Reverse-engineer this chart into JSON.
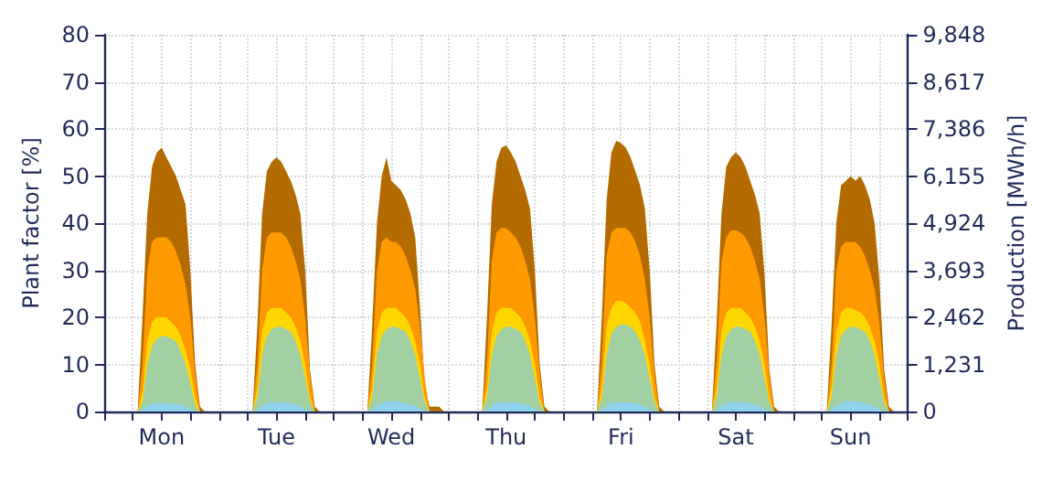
{
  "chart_data": {
    "type": "area",
    "ylabel": "Plant factor [%]",
    "y2label": "Production [MWh/h]",
    "categories": [
      null,
      null,
      null,
      null,
      null,
      null,
      null,
      null,
      null,
      null,
      null,
      null,
      "Mon",
      null,
      null,
      null,
      null,
      null,
      null,
      null,
      null,
      null,
      null,
      null,
      null,
      null,
      null,
      null,
      null,
      null,
      null,
      null,
      null,
      null,
      null,
      null,
      "Tue",
      null,
      null,
      null,
      null,
      null,
      null,
      null,
      null,
      null,
      null,
      null,
      null,
      null,
      null,
      null,
      null,
      null,
      null,
      null,
      null,
      null,
      null,
      null,
      "Wed",
      null,
      null,
      null,
      null,
      null,
      null,
      null,
      null,
      null,
      null,
      null,
      null,
      null,
      null,
      null,
      null,
      null,
      null,
      null,
      null,
      null,
      null,
      null,
      "Thu",
      null,
      null,
      null,
      null,
      null,
      null,
      null,
      null,
      null,
      null,
      null,
      null,
      null,
      null,
      null,
      null,
      null,
      null,
      null,
      null,
      null,
      null,
      null,
      "Fri",
      null,
      null,
      null,
      null,
      null,
      null,
      null,
      null,
      null,
      null,
      null,
      null,
      null,
      null,
      null,
      null,
      null,
      null,
      null,
      null,
      null,
      null,
      null,
      "Sat",
      null,
      null,
      null,
      null,
      null,
      null,
      null,
      null,
      null,
      null,
      null,
      null,
      null,
      null,
      null,
      null,
      null,
      null,
      null,
      null,
      null,
      null,
      null,
      "Sun",
      null,
      null,
      null,
      null,
      null,
      null,
      null,
      null,
      null,
      null,
      null,
      null
    ],
    "series": [
      {
        "color": "#b36b00",
        "values": [
          0,
          0,
          0,
          0,
          0,
          0,
          0,
          0,
          20,
          42,
          52,
          55,
          56,
          54,
          52,
          50,
          47,
          44,
          30,
          10,
          1,
          0,
          0,
          0,
          0,
          0,
          0,
          0,
          0,
          0,
          0,
          0,
          18,
          42,
          51,
          53,
          54,
          53,
          51,
          49,
          46,
          42,
          30,
          9,
          1,
          0,
          0,
          0,
          0,
          0,
          0,
          0,
          0,
          0,
          0,
          0,
          18,
          40,
          50,
          54,
          49,
          48,
          47,
          45,
          42,
          37,
          22,
          5,
          1,
          1,
          1,
          0,
          0,
          0,
          0,
          0,
          0,
          0,
          0,
          0,
          20,
          44,
          53,
          56,
          56.5,
          55,
          53,
          50,
          47,
          43,
          30,
          10,
          1,
          0,
          0,
          0,
          0,
          0,
          0,
          0,
          0,
          0,
          0,
          0,
          20,
          45,
          55,
          57.5,
          57,
          56,
          54,
          51,
          48,
          43,
          30,
          10,
          1,
          0,
          0,
          0,
          0,
          0,
          0,
          0,
          0,
          0,
          0,
          0,
          19,
          42,
          52,
          54,
          55,
          54,
          52,
          49,
          46,
          42,
          29,
          9,
          1,
          0,
          0,
          0,
          0,
          0,
          0,
          0,
          0,
          0,
          0,
          0,
          18,
          40,
          48,
          49,
          50,
          49,
          50,
          48,
          45,
          40,
          28,
          9,
          1,
          0,
          0,
          0,
          0
        ]
      },
      {
        "color": "#ff9900",
        "values": [
          0,
          0,
          0,
          0,
          0,
          0,
          0,
          0,
          10,
          30,
          36,
          37,
          37,
          37,
          36,
          34,
          31,
          27,
          20,
          8,
          0,
          0,
          0,
          0,
          0,
          0,
          0,
          0,
          0,
          0,
          0,
          0,
          10,
          30,
          37,
          38,
          38,
          38,
          37,
          35,
          32,
          28,
          20,
          8,
          0,
          0,
          0,
          0,
          0,
          0,
          0,
          0,
          0,
          0,
          0,
          0,
          10,
          30,
          36,
          37,
          36,
          36,
          35,
          33,
          30,
          26,
          18,
          7,
          0,
          0,
          0,
          0,
          0,
          0,
          0,
          0,
          0,
          0,
          0,
          0,
          11,
          32,
          38,
          39,
          39,
          38,
          37,
          35,
          32,
          28,
          20,
          8,
          0,
          0,
          0,
          0,
          0,
          0,
          0,
          0,
          0,
          0,
          0,
          0,
          11,
          33,
          38,
          39,
          39,
          39,
          38,
          36,
          33,
          28,
          20,
          8,
          0,
          0,
          0,
          0,
          0,
          0,
          0,
          0,
          0,
          0,
          0,
          0,
          11,
          32,
          37,
          38.5,
          38.5,
          38,
          37,
          35,
          32,
          28,
          20,
          8,
          0,
          0,
          0,
          0,
          0,
          0,
          0,
          0,
          0,
          0,
          0,
          0,
          10,
          30,
          35,
          36,
          36,
          36,
          35,
          33,
          30,
          26,
          19,
          7,
          0,
          0,
          0,
          0,
          0
        ]
      },
      {
        "color": "#ffd700",
        "values": [
          0,
          0,
          0,
          0,
          0,
          0,
          0,
          0,
          4,
          15,
          19,
          20,
          20,
          20,
          19,
          18,
          16,
          13,
          9,
          3,
          0,
          0,
          0,
          0,
          0,
          0,
          0,
          0,
          0,
          0,
          0,
          0,
          5,
          17,
          21,
          22,
          22,
          22,
          21,
          20,
          18,
          15,
          10,
          3,
          0,
          0,
          0,
          0,
          0,
          0,
          0,
          0,
          0,
          0,
          0,
          0,
          5,
          17,
          21,
          22,
          22,
          22,
          21,
          20,
          18,
          15,
          10,
          3,
          0,
          0,
          0,
          0,
          0,
          0,
          0,
          0,
          0,
          0,
          0,
          0,
          5,
          17,
          21,
          22,
          22,
          22,
          21,
          20,
          18,
          15,
          10,
          3,
          0,
          0,
          0,
          0,
          0,
          0,
          0,
          0,
          0,
          0,
          0,
          0,
          5,
          18,
          22,
          23.5,
          23.5,
          23,
          22,
          21,
          19,
          15,
          10,
          3,
          0,
          0,
          0,
          0,
          0,
          0,
          0,
          0,
          0,
          0,
          0,
          0,
          5,
          17,
          21,
          22,
          22,
          22,
          21,
          20,
          18,
          15,
          10,
          3,
          0,
          0,
          0,
          0,
          0,
          0,
          0,
          0,
          0,
          0,
          0,
          0,
          5,
          17,
          21,
          22,
          22,
          21.5,
          21,
          20,
          18,
          15,
          10,
          3,
          0,
          0,
          0,
          0,
          0
        ]
      },
      {
        "color": "#a3d0a3",
        "values": [
          0,
          0,
          0,
          0,
          0,
          0,
          0,
          0,
          2,
          10,
          14,
          15.5,
          16,
          16,
          15.5,
          15,
          13,
          10,
          6,
          1.5,
          0,
          0,
          0,
          0,
          0,
          0,
          0,
          0,
          0,
          0,
          0,
          0,
          3,
          12,
          16,
          17.5,
          18,
          18,
          17.5,
          17,
          15,
          12,
          7,
          2,
          0,
          0,
          0,
          0,
          0,
          0,
          0,
          0,
          0,
          0,
          0,
          0,
          3,
          12,
          16,
          17.5,
          18,
          18,
          17.5,
          17,
          15,
          12,
          7,
          2,
          0,
          0,
          0,
          0,
          0,
          0,
          0,
          0,
          0,
          0,
          0,
          0,
          3,
          12,
          16,
          17.5,
          18,
          18,
          17.5,
          17,
          15,
          12,
          7,
          2,
          0,
          0,
          0,
          0,
          0,
          0,
          0,
          0,
          0,
          0,
          0,
          0,
          3,
          12,
          16.5,
          18,
          18.5,
          18.5,
          18,
          17,
          15,
          12,
          7,
          2,
          0,
          0,
          0,
          0,
          0,
          0,
          0,
          0,
          0,
          0,
          0,
          0,
          3,
          12,
          16,
          17.5,
          18,
          18,
          17.5,
          17,
          15,
          12,
          7,
          2,
          0,
          0,
          0,
          0,
          0,
          0,
          0,
          0,
          0,
          0,
          0,
          0,
          3,
          12,
          16,
          17.5,
          18,
          18,
          17.5,
          17,
          15,
          12,
          7,
          2,
          0,
          0,
          0,
          0,
          0
        ]
      },
      {
        "color": "#8fd3ec",
        "values": [
          0,
          0,
          0,
          0,
          0,
          0,
          0,
          0,
          0.3,
          1.2,
          1.6,
          1.8,
          1.8,
          1.8,
          1.7,
          1.6,
          1.4,
          1,
          0.5,
          0,
          0,
          0,
          0,
          0,
          0,
          0,
          0,
          0,
          0,
          0,
          0,
          0,
          0.3,
          1.3,
          1.8,
          2,
          2,
          2,
          1.9,
          1.8,
          1.5,
          1.1,
          0.5,
          0,
          0,
          0,
          0,
          0,
          0,
          0,
          0,
          0,
          0,
          0,
          0,
          0,
          0.3,
          1.3,
          1.8,
          2.2,
          2.2,
          2.2,
          2,
          1.8,
          1.5,
          1.1,
          0.5,
          0,
          0,
          0,
          0,
          0,
          0,
          0,
          0,
          0,
          0,
          0,
          0,
          0,
          0.3,
          1.3,
          1.8,
          2,
          2,
          2,
          1.9,
          1.8,
          1.5,
          1.1,
          0.5,
          0,
          0,
          0,
          0,
          0,
          0,
          0,
          0,
          0,
          0,
          0,
          0,
          0,
          0.3,
          1.3,
          1.8,
          2,
          2,
          2,
          1.9,
          1.8,
          1.5,
          1.1,
          0.5,
          0,
          0,
          0,
          0,
          0,
          0,
          0,
          0,
          0,
          0,
          0,
          0,
          0,
          0.3,
          1.3,
          1.8,
          2,
          2,
          2,
          1.9,
          1.8,
          1.5,
          1.1,
          0.5,
          0,
          0,
          0,
          0,
          0,
          0,
          0,
          0,
          0,
          0,
          0,
          0,
          0,
          0.3,
          1.3,
          1.8,
          2.2,
          2.2,
          2.2,
          2,
          1.8,
          1.5,
          1.1,
          0.5,
          0,
          0,
          0,
          0,
          0,
          0
        ]
      }
    ],
    "ylim": [
      0,
      80
    ],
    "yticks": [
      0,
      10,
      20,
      30,
      40,
      50,
      60,
      70,
      80
    ],
    "y2lim": [
      0,
      9848
    ],
    "y2ticks": [
      0,
      {
        "value": 1231,
        "label": "1,231"
      },
      {
        "value": 2462,
        "label": "2,462"
      },
      {
        "value": 3693,
        "label": "3,693"
      },
      {
        "value": 4924,
        "label": "4,924"
      },
      {
        "value": 6155,
        "label": "6,155"
      },
      {
        "value": 7386,
        "label": "7,386"
      },
      {
        "value": 8617,
        "label": "8,617"
      },
      {
        "value": 9848,
        "label": "9,848"
      }
    ],
    "grid": true
  }
}
